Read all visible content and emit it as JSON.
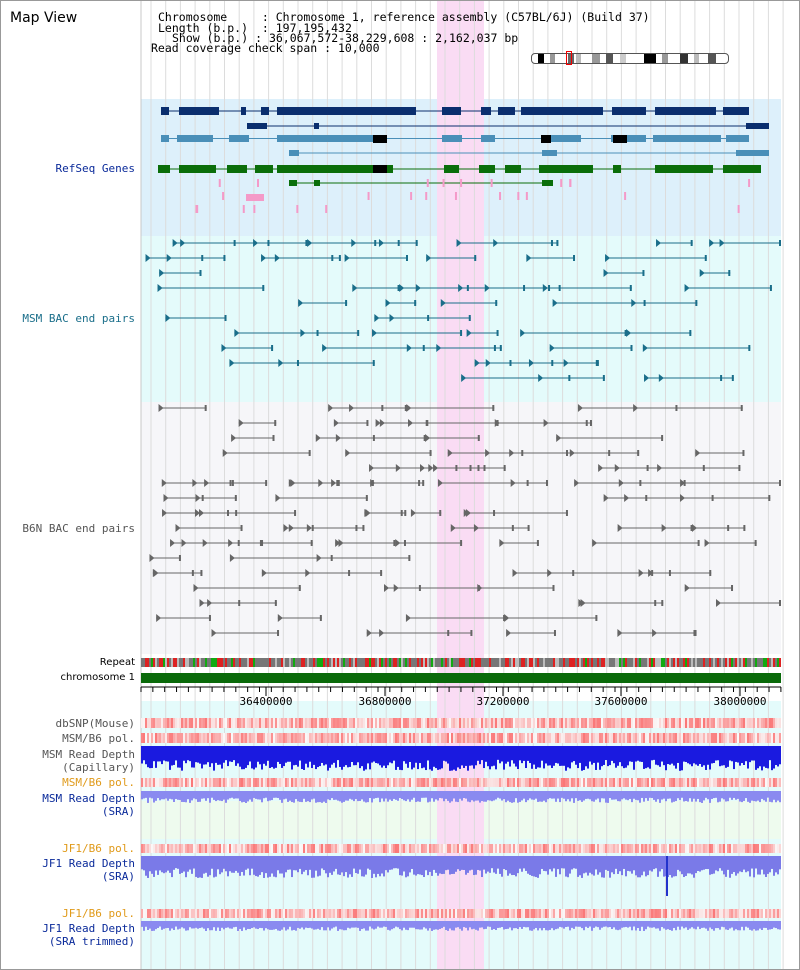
{
  "view_title": "Map View",
  "header": {
    "chromosome_key": "Chromosome",
    "chromosome_value": "Chromosome 1, reference assembly (C57BL/6J) (Build 37)",
    "length_key": "Length (b.p.)",
    "length_value": "197,195,432",
    "show_key": "Show (b.p.)",
    "show_value": "36,067,572-38,229,608 : 2,162,037 bp",
    "span_key": "Read coverage check span",
    "span_value": "10,000"
  },
  "tracks": {
    "refseq": "RefSeq Genes",
    "msm_bac": "MSM BAC end pairs",
    "b6n_bac": "B6N BAC end pairs",
    "repeat": "Repeat",
    "chromosome": "chromosome 1",
    "dbsnp": "dbSNP(Mouse)",
    "msm_b6_pol_1": "MSM/B6 pol.",
    "msm_depth_cap_1": "MSM Read Depth",
    "msm_depth_cap_2": "(Capillary)",
    "msm_b6_pol_2": "MSM/B6 pol.",
    "msm_depth_sra_1": "MSM Read Depth",
    "msm_depth_sra_2": "(SRA)",
    "jf1_b6_pol_1": "JF1/B6 pol.",
    "jf1_depth_sra_1": "JF1 Read Depth",
    "jf1_depth_sra_2": "(SRA)",
    "jf1_b6_pol_2": "JF1/B6 pol.",
    "jf1_depth_trim_1": "JF1 Read Depth",
    "jf1_depth_trim_2": "(SRA trimmed)"
  },
  "axis": {
    "ticks": [
      "36400000",
      "36800000",
      "37200000",
      "37600000",
      "38000000"
    ]
  },
  "colors": {
    "refseq_bg": "#ddf0fb",
    "msm_bg": "#e4fbfb",
    "b6n_bg": "#f6f6f9",
    "highlight": "#fadcf4",
    "gene_navy": "#0a2e6e",
    "gene_steel": "#4a8fb8",
    "gene_green": "#0a6e0a",
    "msm_pair": "#1a6e8a",
    "b6n_pair": "#666666",
    "chrom_bar": "#0a6a0a",
    "label_navy": "#0a2a9a",
    "label_teal": "#1a6e8a",
    "label_gray": "#555555",
    "label_orange": "#e09a1a"
  }
}
